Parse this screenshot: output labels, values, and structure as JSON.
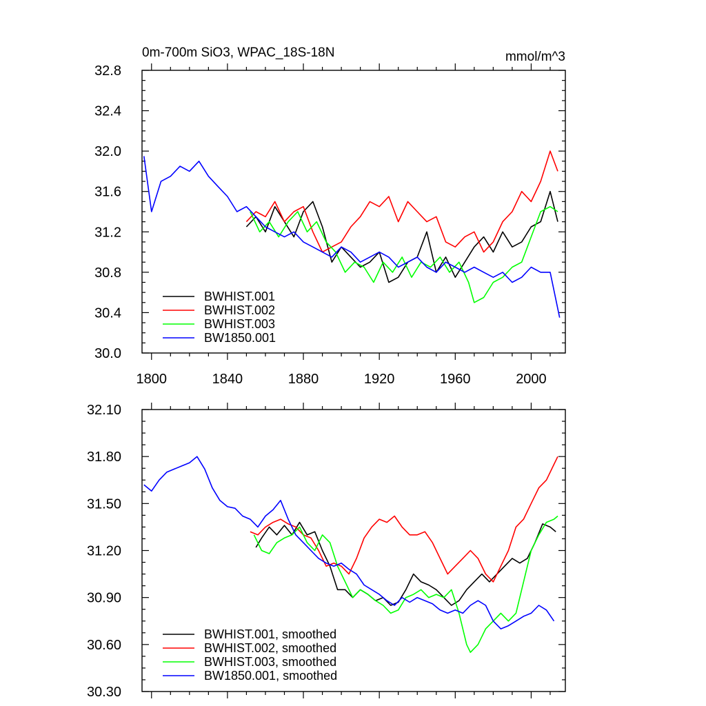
{
  "chart_data": [
    {
      "type": "line",
      "title": "0m-700m SiO3, WPAC_18S-18N",
      "units": "mmol/m^3",
      "xlim": [
        1795,
        2018
      ],
      "ylim": [
        30.0,
        32.8
      ],
      "xticks": [
        1800,
        1840,
        1880,
        1920,
        1960,
        2000
      ],
      "yticks": [
        30.0,
        30.4,
        30.8,
        31.2,
        31.6,
        32.0,
        32.4,
        32.8
      ],
      "ytick_labels": [
        "30.0",
        "30.4",
        "30.8",
        "31.2",
        "31.6",
        "32.0",
        "32.4",
        "32.8"
      ],
      "legend": [
        "BWHIST.001",
        "BWHIST.002",
        "BWHIST.003",
        "BW1850.001"
      ],
      "legend_position": "bottom-left",
      "series": [
        {
          "name": "BWHIST.001",
          "color": "#000000",
          "x": [
            1850,
            1855,
            1860,
            1865,
            1870,
            1875,
            1880,
            1885,
            1890,
            1895,
            1900,
            1905,
            1910,
            1915,
            1920,
            1925,
            1930,
            1935,
            1940,
            1945,
            1950,
            1955,
            1960,
            1965,
            1970,
            1975,
            1980,
            1985,
            1990,
            1995,
            2000,
            2005,
            2010,
            2014
          ],
          "y": [
            31.25,
            31.35,
            31.2,
            31.45,
            31.3,
            31.15,
            31.4,
            31.5,
            31.25,
            30.9,
            31.05,
            30.95,
            30.85,
            30.9,
            31.0,
            30.7,
            30.75,
            30.9,
            30.95,
            31.2,
            30.8,
            30.95,
            30.75,
            30.9,
            31.05,
            31.15,
            31.0,
            31.2,
            31.05,
            31.1,
            31.25,
            31.3,
            31.6,
            31.3
          ]
        },
        {
          "name": "BWHIST.002",
          "color": "#ff0000",
          "x": [
            1850,
            1855,
            1860,
            1865,
            1870,
            1875,
            1880,
            1885,
            1890,
            1895,
            1900,
            1905,
            1910,
            1915,
            1920,
            1925,
            1930,
            1935,
            1940,
            1945,
            1950,
            1955,
            1960,
            1965,
            1970,
            1975,
            1980,
            1985,
            1990,
            1995,
            2000,
            2005,
            2010,
            2014
          ],
          "y": [
            31.3,
            31.4,
            31.35,
            31.5,
            31.3,
            31.4,
            31.45,
            31.2,
            31.0,
            31.05,
            31.1,
            31.25,
            31.35,
            31.5,
            31.45,
            31.55,
            31.3,
            31.5,
            31.4,
            31.3,
            31.35,
            31.1,
            31.05,
            31.15,
            31.2,
            31.0,
            31.1,
            31.3,
            31.4,
            31.6,
            31.5,
            31.7,
            32.0,
            31.8
          ]
        },
        {
          "name": "BWHIST.003",
          "color": "#00ff00",
          "x": [
            1852,
            1857,
            1862,
            1867,
            1872,
            1877,
            1882,
            1887,
            1892,
            1897,
            1902,
            1907,
            1912,
            1917,
            1922,
            1927,
            1932,
            1937,
            1942,
            1947,
            1952,
            1957,
            1962,
            1967,
            1970,
            1975,
            1980,
            1985,
            1990,
            1995,
            2000,
            2005,
            2010,
            2014
          ],
          "y": [
            31.4,
            31.2,
            31.3,
            31.15,
            31.3,
            31.4,
            31.2,
            31.3,
            31.1,
            31.0,
            30.8,
            30.9,
            30.85,
            30.7,
            30.9,
            30.8,
            30.95,
            30.75,
            30.9,
            30.85,
            30.95,
            30.8,
            30.9,
            30.7,
            30.5,
            30.55,
            30.7,
            30.75,
            30.85,
            30.9,
            31.15,
            31.4,
            31.45,
            31.4
          ]
        },
        {
          "name": "BW1850.001",
          "color": "#0000ff",
          "x": [
            1796,
            1800,
            1805,
            1810,
            1815,
            1820,
            1825,
            1830,
            1835,
            1840,
            1845,
            1850,
            1855,
            1860,
            1865,
            1870,
            1875,
            1880,
            1885,
            1890,
            1895,
            1900,
            1905,
            1910,
            1915,
            1920,
            1925,
            1930,
            1935,
            1940,
            1945,
            1950,
            1955,
            1960,
            1965,
            1970,
            1975,
            1980,
            1985,
            1990,
            1995,
            2000,
            2005,
            2010,
            2015
          ],
          "y": [
            31.95,
            31.4,
            31.7,
            31.75,
            31.85,
            31.8,
            31.9,
            31.75,
            31.65,
            31.55,
            31.4,
            31.45,
            31.35,
            31.25,
            31.2,
            31.15,
            31.2,
            31.1,
            31.05,
            31.0,
            30.95,
            31.05,
            31.0,
            30.9,
            30.95,
            31.0,
            30.95,
            30.85,
            30.9,
            30.95,
            30.85,
            30.8,
            30.9,
            30.85,
            30.8,
            30.85,
            30.8,
            30.75,
            30.8,
            30.7,
            30.75,
            30.85,
            30.8,
            30.8,
            30.35
          ]
        }
      ]
    },
    {
      "type": "line",
      "title": "",
      "xlim": [
        1795,
        2018
      ],
      "ylim": [
        30.3,
        32.1
      ],
      "xticks": [
        1800,
        1840,
        1880,
        1920,
        1960,
        2000
      ],
      "yticks": [
        30.3,
        30.6,
        30.9,
        31.2,
        31.5,
        31.8,
        32.1
      ],
      "ytick_labels": [
        "30.30",
        "30.60",
        "30.90",
        "31.20",
        "31.50",
        "31.80",
        "32.10"
      ],
      "legend": [
        "BWHIST.001, smoothed",
        "BWHIST.002, smoothed",
        "BWHIST.003, smoothed",
        "BW1850.001, smoothed"
      ],
      "legend_position": "bottom-left",
      "series": [
        {
          "name": "BWHIST.001, smoothed",
          "color": "#000000",
          "x": [
            1855,
            1858,
            1862,
            1866,
            1870,
            1874,
            1878,
            1882,
            1886,
            1890,
            1894,
            1898,
            1902,
            1906,
            1910,
            1914,
            1918,
            1922,
            1926,
            1930,
            1934,
            1938,
            1942,
            1946,
            1950,
            1954,
            1958,
            1962,
            1966,
            1970,
            1974,
            1978,
            1982,
            1986,
            1990,
            1994,
            1998,
            2002,
            2006,
            2010,
            2013
          ],
          "y": [
            31.22,
            31.28,
            31.35,
            31.3,
            31.36,
            31.3,
            31.38,
            31.3,
            31.32,
            31.2,
            31.1,
            30.95,
            30.95,
            30.9,
            30.95,
            30.92,
            30.88,
            30.9,
            30.85,
            30.87,
            30.95,
            31.05,
            31.0,
            30.98,
            30.95,
            30.9,
            30.85,
            30.88,
            30.95,
            31.0,
            31.05,
            31.0,
            31.05,
            31.1,
            31.15,
            31.12,
            31.15,
            31.25,
            31.37,
            31.35,
            31.32
          ]
        },
        {
          "name": "BWHIST.002, smoothed",
          "color": "#ff0000",
          "x": [
            1852,
            1856,
            1860,
            1864,
            1868,
            1872,
            1876,
            1880,
            1884,
            1888,
            1892,
            1896,
            1900,
            1904,
            1908,
            1912,
            1916,
            1920,
            1924,
            1928,
            1932,
            1936,
            1940,
            1944,
            1948,
            1952,
            1956,
            1960,
            1964,
            1968,
            1972,
            1976,
            1980,
            1984,
            1988,
            1992,
            1996,
            2000,
            2004,
            2008,
            2012,
            2014
          ],
          "y": [
            31.32,
            31.3,
            31.35,
            31.38,
            31.4,
            31.37,
            31.35,
            31.3,
            31.28,
            31.2,
            31.1,
            31.12,
            31.1,
            31.05,
            31.15,
            31.28,
            31.35,
            31.4,
            31.38,
            31.42,
            31.35,
            31.3,
            31.3,
            31.32,
            31.25,
            31.15,
            31.05,
            31.1,
            31.15,
            31.2,
            31.15,
            31.05,
            31.0,
            31.1,
            31.2,
            31.35,
            31.4,
            31.5,
            31.6,
            31.65,
            31.75,
            31.8
          ]
        },
        {
          "name": "BWHIST.003, smoothed",
          "color": "#00ff00",
          "x": [
            1854,
            1858,
            1862,
            1866,
            1870,
            1874,
            1878,
            1882,
            1886,
            1890,
            1894,
            1898,
            1902,
            1906,
            1910,
            1914,
            1918,
            1922,
            1926,
            1930,
            1934,
            1938,
            1942,
            1946,
            1950,
            1954,
            1958,
            1962,
            1966,
            1968,
            1972,
            1976,
            1980,
            1984,
            1988,
            1992,
            1996,
            2000,
            2004,
            2008,
            2012,
            2014
          ],
          "y": [
            31.3,
            31.2,
            31.18,
            31.25,
            31.28,
            31.3,
            31.35,
            31.25,
            31.2,
            31.3,
            31.25,
            31.1,
            31.0,
            30.9,
            30.95,
            30.92,
            30.88,
            30.85,
            30.8,
            30.82,
            30.9,
            30.92,
            30.95,
            30.9,
            30.92,
            30.9,
            30.95,
            30.8,
            30.6,
            30.55,
            30.6,
            30.7,
            30.75,
            30.8,
            30.75,
            30.8,
            31.0,
            31.2,
            31.3,
            31.38,
            31.4,
            31.42
          ]
        },
        {
          "name": "BW1850.001, smoothed",
          "color": "#0000ff",
          "x": [
            1796,
            1800,
            1804,
            1808,
            1812,
            1816,
            1820,
            1824,
            1828,
            1832,
            1836,
            1840,
            1844,
            1848,
            1852,
            1856,
            1860,
            1864,
            1868,
            1872,
            1876,
            1880,
            1884,
            1888,
            1892,
            1896,
            1900,
            1904,
            1908,
            1912,
            1916,
            1920,
            1924,
            1928,
            1932,
            1936,
            1940,
            1944,
            1948,
            1952,
            1956,
            1960,
            1964,
            1968,
            1972,
            1976,
            1980,
            1984,
            1988,
            1992,
            1996,
            2000,
            2004,
            2008,
            2012
          ],
          "y": [
            31.62,
            31.58,
            31.65,
            31.7,
            31.72,
            31.74,
            31.76,
            31.8,
            31.72,
            31.6,
            31.52,
            31.48,
            31.47,
            31.42,
            31.4,
            31.35,
            31.42,
            31.46,
            31.52,
            31.4,
            31.3,
            31.25,
            31.2,
            31.15,
            31.12,
            31.1,
            31.12,
            31.08,
            31.05,
            30.98,
            30.95,
            30.92,
            30.88,
            30.85,
            30.9,
            30.87,
            30.9,
            30.88,
            30.86,
            30.82,
            30.8,
            30.82,
            30.8,
            30.85,
            30.88,
            30.85,
            30.75,
            30.7,
            30.72,
            30.75,
            30.78,
            30.8,
            30.85,
            30.82,
            30.75
          ]
        }
      ]
    }
  ]
}
